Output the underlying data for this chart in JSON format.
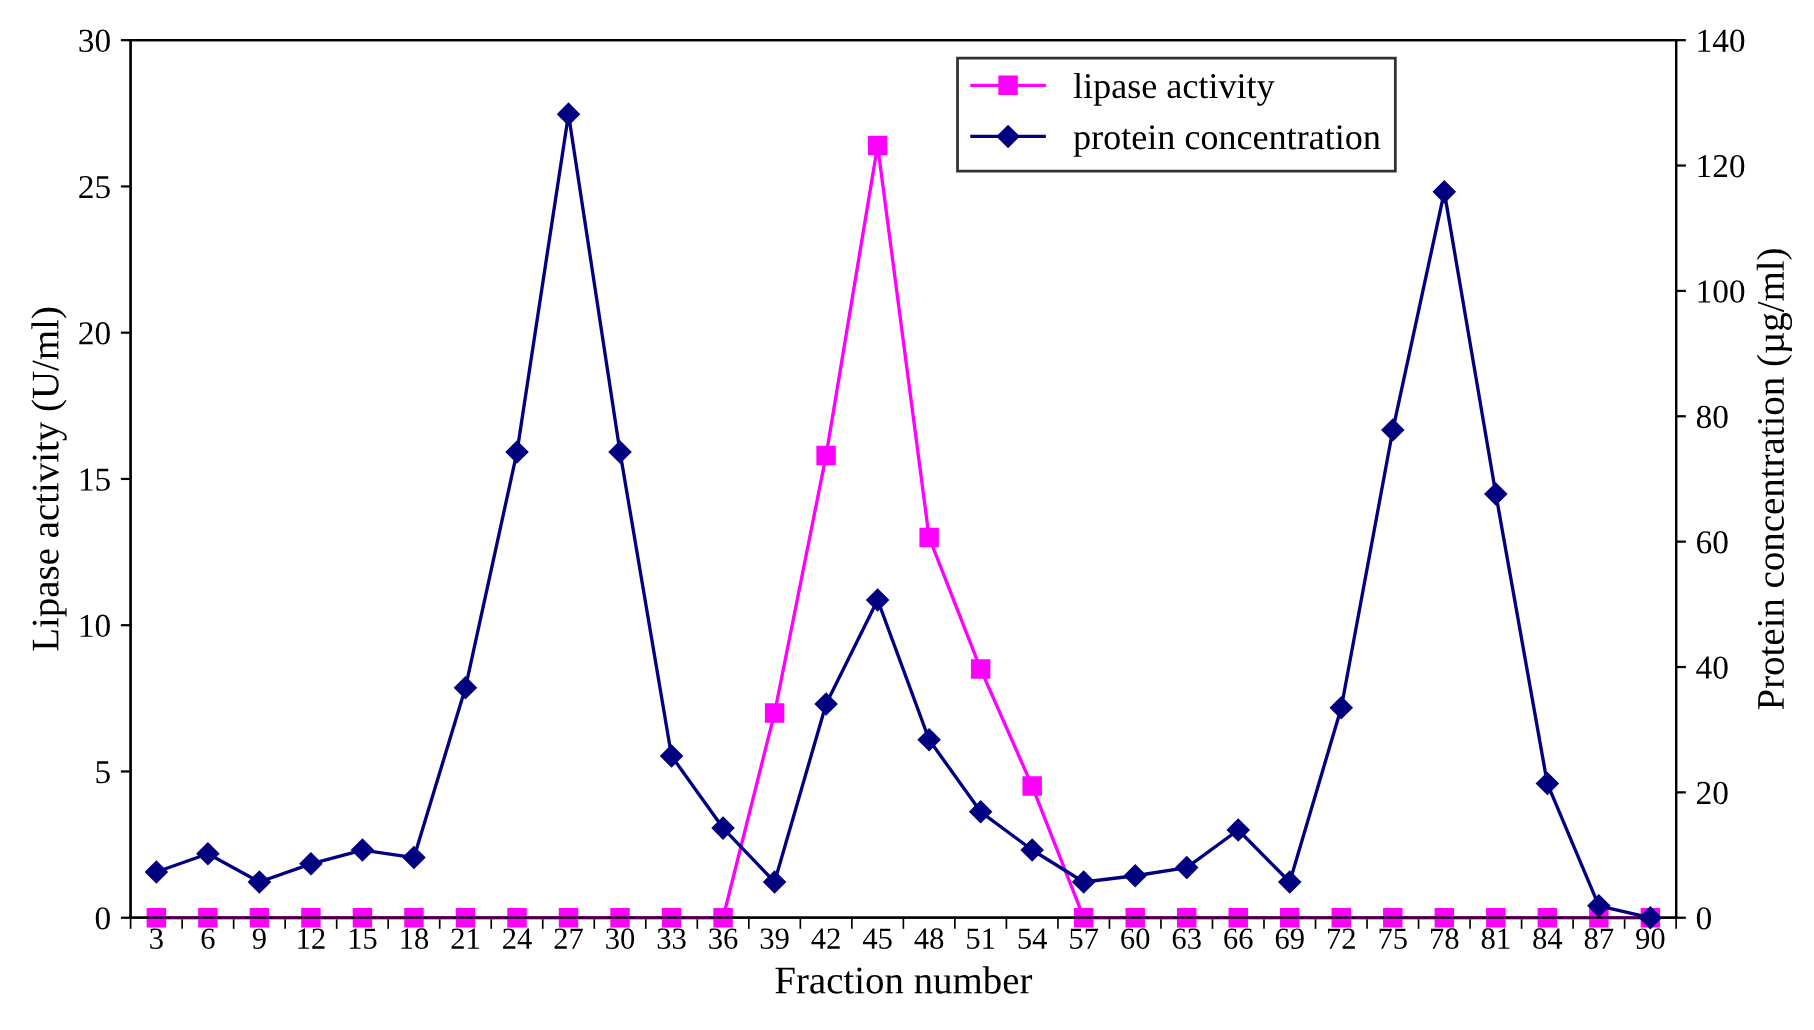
{
  "chart_data": {
    "type": "line",
    "xlabel": "Fraction number",
    "ylabel": "Lipase activity (U/ml)",
    "y2label": "Protein concentration (µg/ml)",
    "categories": [
      "3",
      "6",
      "9",
      "12",
      "15",
      "18",
      "21",
      "24",
      "27",
      "30",
      "33",
      "36",
      "39",
      "42",
      "45",
      "48",
      "51",
      "54",
      "57",
      "60",
      "63",
      "66",
      "69",
      "72",
      "75",
      "78",
      "81",
      "84",
      "87",
      "90"
    ],
    "series": [
      {
        "name": "lipase activity",
        "color": "#ff00ff",
        "marker": "square",
        "values": [
          0,
          0,
          0,
          0,
          0,
          0,
          0,
          0,
          0,
          0,
          0,
          0,
          7.0,
          15.8,
          26.4,
          13.0,
          8.5,
          4.5,
          0,
          0,
          0,
          0,
          0,
          0,
          0,
          0,
          0,
          0,
          0,
          0
        ]
      },
      {
        "name": "protein concentration",
        "color": "#000080",
        "marker": "diamond",
        "axis": "y2",
        "values": [
          7.3,
          10.2,
          5.7,
          8.6,
          10.8,
          9.6,
          36.7,
          74.3,
          128.2,
          74.3,
          25.8,
          14.3,
          5.7,
          34.1,
          50.7,
          28.4,
          16.9,
          10.8,
          5.7,
          6.7,
          8.0,
          14.0,
          5.7,
          33.5,
          77.8,
          115.8,
          67.6,
          21.4,
          1.9,
          0
        ]
      }
    ],
    "ylim": [
      0,
      30
    ],
    "yticks": [
      0,
      5,
      10,
      15,
      20,
      25,
      30
    ],
    "y2lim": [
      0,
      140
    ],
    "y2ticks": [
      0,
      20,
      40,
      60,
      80,
      100,
      120,
      140
    ],
    "legend": "top right",
    "grid": false
  }
}
